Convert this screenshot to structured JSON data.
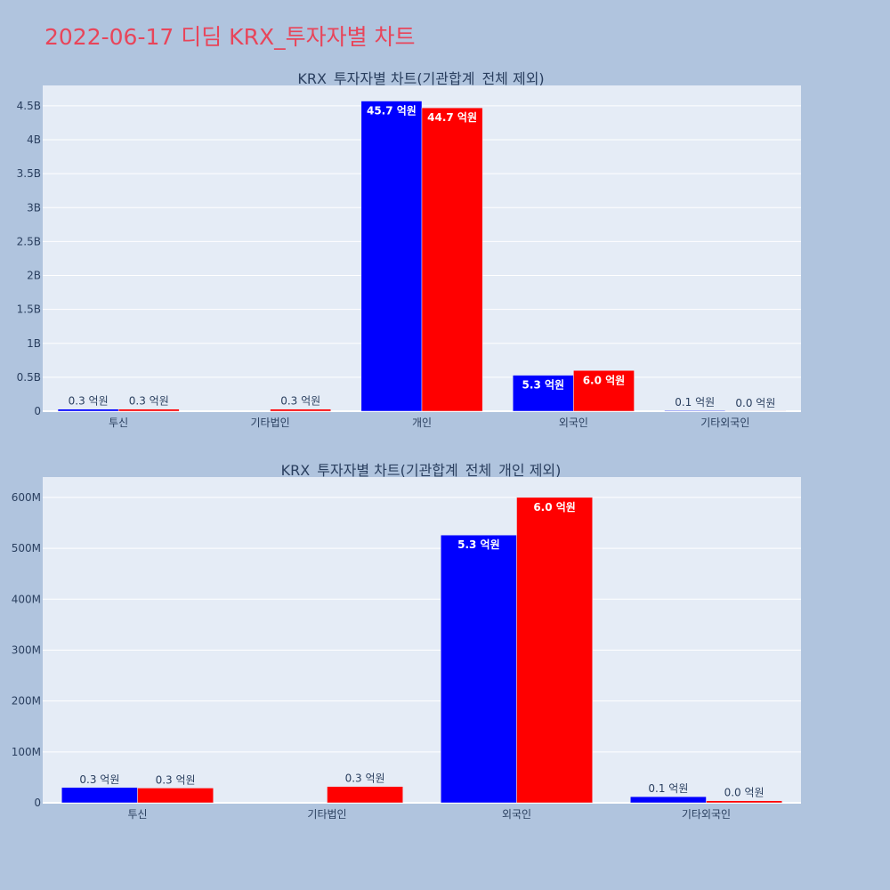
{
  "page_title": "2022-06-17 디딤 KRX_투자자별 차트",
  "colors": {
    "buy": "#0000ff",
    "sell": "#ff0000",
    "title": "#e8455a",
    "plot_bg": "#e5ecf6",
    "page_bg": "#b0c4de"
  },
  "chart_data": [
    {
      "type": "bar",
      "title": "KRX_투자자별 차트(기관합계_전체 제외)",
      "categories": [
        "투신",
        "기타법인",
        "개인",
        "외국인",
        "기타외국인"
      ],
      "series": [
        {
          "color": "#0000ff",
          "values": [
            30000000,
            0,
            4570000000,
            530000000,
            10000000
          ],
          "labels": [
            "0.3 억원",
            "",
            "45.7 억원",
            "5.3 억원",
            "0.1 억원"
          ]
        },
        {
          "color": "#ff0000",
          "values": [
            30000000,
            30000000,
            4470000000,
            600000000,
            2000000
          ],
          "labels": [
            "0.3 억원",
            "0.3 억원",
            "44.7 억원",
            "6.0 억원",
            "0.0 억원"
          ]
        }
      ],
      "ylim": [
        0,
        4800000000
      ],
      "yticks": [
        0,
        500000000,
        1000000000,
        1500000000,
        2000000000,
        2500000000,
        3000000000,
        3500000000,
        4000000000,
        4500000000
      ],
      "ytick_labels": [
        "0",
        "0.5B",
        "1B",
        "1.5B",
        "2B",
        "2.5B",
        "3B",
        "3.5B",
        "4B",
        "4.5B"
      ],
      "grid": true
    },
    {
      "type": "bar",
      "title": "KRX_투자자별 차트(기관합계_전체_개인 제외)",
      "categories": [
        "투신",
        "기타법인",
        "외국인",
        "기타외국인"
      ],
      "series": [
        {
          "color": "#0000ff",
          "values": [
            30000000,
            0,
            526000000,
            12000000
          ],
          "labels": [
            "0.3 억원",
            "",
            "5.3 억원",
            "0.1 억원"
          ]
        },
        {
          "color": "#ff0000",
          "values": [
            29000000,
            32000000,
            600000000,
            4000000
          ],
          "labels": [
            "0.3 억원",
            "0.3 억원",
            "6.0 억원",
            "0.0 억원"
          ]
        }
      ],
      "ylim": [
        0,
        640000000
      ],
      "yticks": [
        0,
        100000000,
        200000000,
        300000000,
        400000000,
        500000000,
        600000000
      ],
      "ytick_labels": [
        "0",
        "100M",
        "200M",
        "300M",
        "400M",
        "500M",
        "600M"
      ],
      "grid": true
    }
  ]
}
